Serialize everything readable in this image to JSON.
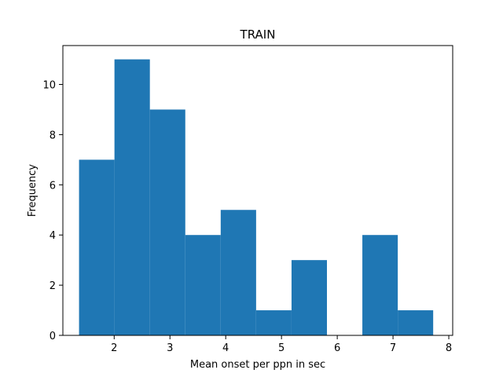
{
  "chart_data": {
    "type": "bar",
    "title": "TRAIN",
    "xlabel": "Mean onset per ppn in sec",
    "ylabel": "Frequency",
    "xlim": [
      1.08,
      8.07
    ],
    "ylim": [
      0,
      11.55
    ],
    "xticks": [
      "2",
      "3",
      "4",
      "5",
      "6",
      "7",
      "8"
    ],
    "xtick_values": [
      2,
      3,
      4,
      5,
      6,
      7,
      8
    ],
    "yticks": [
      "0",
      "2",
      "4",
      "6",
      "8",
      "10"
    ],
    "ytick_values": [
      0,
      2,
      4,
      6,
      8,
      10
    ],
    "bin_edges": [
      1.37,
      2.005,
      2.64,
      3.275,
      3.91,
      4.545,
      5.18,
      5.815,
      6.45,
      7.085,
      7.72
    ],
    "values": [
      7,
      11,
      9,
      4,
      5,
      1,
      3,
      0,
      4,
      1
    ],
    "color": "#1f77b4",
    "grid": false
  }
}
